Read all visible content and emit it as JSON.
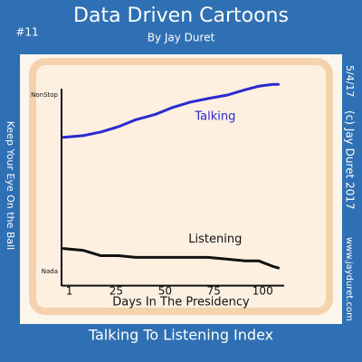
{
  "chart_data": {
    "type": "line",
    "title": "Data Driven Cartoons",
    "subtitle": "By Jay Duret",
    "issue": "#11",
    "date": "5/4/17",
    "copyright": "(c) Jay Duret 2017",
    "website": "www.jayduret.com",
    "side_note": "Keep Your Eye On the Ball",
    "caption": "Talking To Listening Index",
    "xlabel": "Days In The Presidency",
    "xlim": [
      -3,
      111
    ],
    "xticks": [
      1,
      25,
      50,
      75,
      100
    ],
    "ylim": [
      -8,
      110
    ],
    "yticks": [
      {
        "value": 100,
        "label": "NonStop"
      },
      {
        "value": 0,
        "label": "Nada"
      }
    ],
    "x": [
      -2,
      8,
      17,
      26,
      35,
      45,
      54,
      63,
      72,
      82,
      91,
      98,
      105,
      108
    ],
    "series": [
      {
        "name": "Talking",
        "color": "#2a2ad0",
        "values": [
          76,
          77,
          79,
          82,
          86,
          89,
          93,
          96,
          98,
          100,
          103,
          105,
          106,
          106
        ]
      },
      {
        "name": "Listening",
        "color": "#111111",
        "values": [
          13,
          12,
          9,
          9,
          8,
          8,
          8,
          8,
          8,
          7,
          6,
          6,
          3,
          2
        ]
      }
    ]
  }
}
